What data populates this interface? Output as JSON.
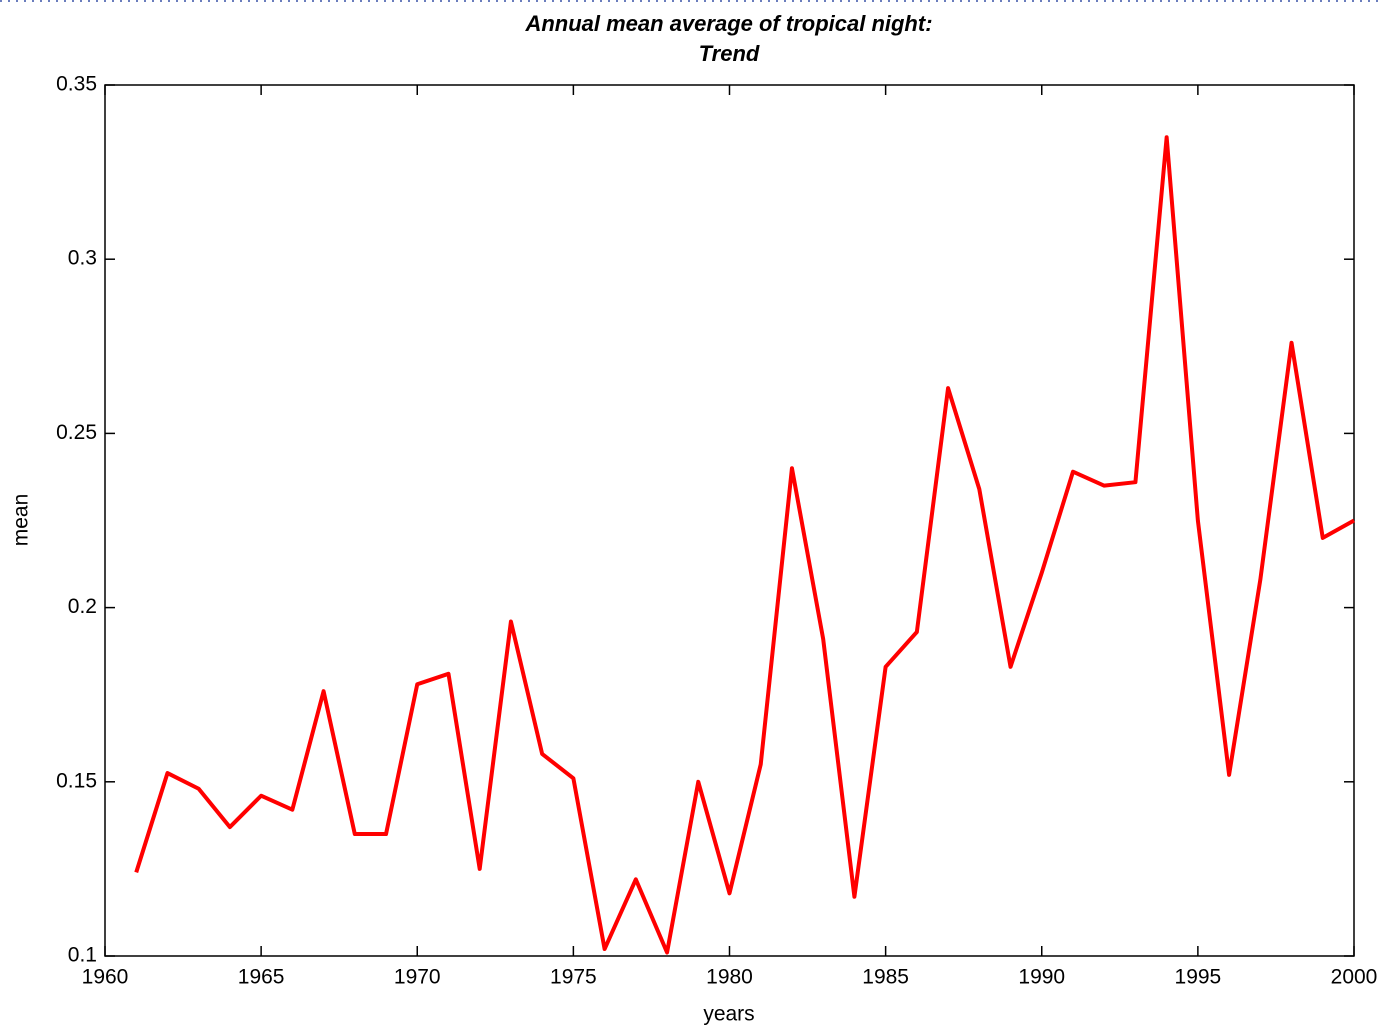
{
  "chart_data": {
    "type": "line",
    "title": [
      "Annual mean average of tropical night:",
      "Trend"
    ],
    "xlabel": "years",
    "ylabel": "mean",
    "x": [
      1961,
      1962,
      1963,
      1964,
      1965,
      1966,
      1967,
      1968,
      1969,
      1970,
      1971,
      1972,
      1973,
      1974,
      1975,
      1976,
      1977,
      1978,
      1979,
      1980,
      1981,
      1982,
      1983,
      1984,
      1985,
      1986,
      1987,
      1988,
      1989,
      1990,
      1991,
      1992,
      1993,
      1994,
      1995,
      1996,
      1997,
      1998,
      1999,
      2000
    ],
    "series": [
      {
        "name": "mean",
        "color": "#ff0000",
        "values": [
          0.124,
          0.1525,
          0.148,
          0.137,
          0.146,
          0.142,
          0.176,
          0.135,
          0.135,
          0.178,
          0.181,
          0.125,
          0.196,
          0.158,
          0.151,
          0.102,
          0.122,
          0.101,
          0.15,
          0.118,
          0.155,
          0.24,
          0.191,
          0.117,
          0.183,
          0.193,
          0.263,
          0.234,
          0.183,
          0.21,
          0.239,
          0.235,
          0.236,
          0.335,
          0.225,
          0.152,
          0.208,
          0.276,
          0.22,
          0.225
        ]
      }
    ],
    "xlim": [
      1960,
      2000
    ],
    "xticks": [
      1960,
      1965,
      1970,
      1975,
      1980,
      1985,
      1990,
      1995,
      2000
    ],
    "ylim": [
      0.1,
      0.35
    ],
    "yticks": [
      0.1,
      0.15,
      0.2,
      0.25,
      0.3,
      0.35
    ],
    "grid": false
  }
}
